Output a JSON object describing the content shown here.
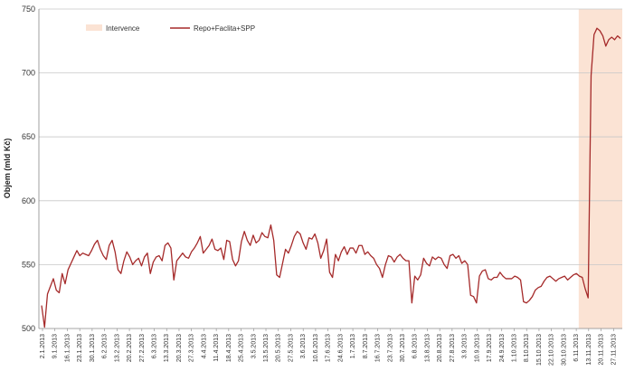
{
  "chart_data": {
    "type": "line",
    "title": "",
    "xlabel": "",
    "ylabel": "Objem (mld Kč)",
    "ylim": [
      500,
      750
    ],
    "yticks": [
      500,
      550,
      600,
      650,
      700,
      750
    ],
    "grid": "horizontal",
    "legend_position": "top-left",
    "colors": {
      "line": "#a52a2a",
      "intervention": "#fbe3d4",
      "grid": "#c8c8c8"
    },
    "intervention": {
      "name": "Intervence",
      "start": "7.11.2013",
      "end": "2.12.2013"
    },
    "x_ticks": [
      "2.1.2013",
      "9.1.2013",
      "16.1.2013",
      "23.1.2013",
      "30.1.2013",
      "6.2.2013",
      "13.2.2013",
      "20.2.2013",
      "27.2.2013",
      "6.3.2013",
      "13.3.2013",
      "20.3.2013",
      "27.3.2013",
      "4.4.2013",
      "11.4.2013",
      "18.4.2013",
      "25.4.2013",
      "3.5.2013",
      "13.5.2013",
      "20.5.2013",
      "27.5.2013",
      "3.6.2013",
      "10.6.2013",
      "17.6.2013",
      "24.6.2013",
      "1.7.2013",
      "8.7.2013",
      "16.7.2013",
      "23.7.2013",
      "30.7.2013",
      "6.8.2013",
      "13.8.2013",
      "20.8.2013",
      "27.8.2013",
      "3.9.2013",
      "10.9.2013",
      "17.9.2013",
      "24.9.2013",
      "1.10.2013",
      "8.10.2013",
      "15.10.2013",
      "22.10.2013",
      "30.10.2013",
      "6.11.2013",
      "13.11.2013",
      "20.11.2013",
      "27.11.2013"
    ],
    "series": [
      {
        "name": "Repo+Faclita+SPP",
        "values": [
          518,
          501,
          527,
          533,
          539,
          530,
          528,
          543,
          535,
          546,
          551,
          556,
          561,
          557,
          559,
          558,
          557,
          561,
          566,
          569,
          562,
          557,
          554,
          565,
          569,
          560,
          546,
          543,
          553,
          560,
          556,
          550,
          553,
          555,
          549,
          556,
          559,
          543,
          552,
          556,
          557,
          553,
          565,
          567,
          563,
          538,
          553,
          556,
          559,
          556,
          555,
          560,
          563,
          567,
          572,
          559,
          562,
          565,
          570,
          562,
          561,
          563,
          554,
          569,
          568,
          554,
          549,
          553,
          568,
          576,
          569,
          565,
          573,
          567,
          569,
          575,
          572,
          571,
          581,
          569,
          542,
          540,
          551,
          562,
          559,
          565,
          572,
          576,
          574,
          567,
          562,
          571,
          570,
          574,
          567,
          555,
          561,
          570,
          544,
          540,
          558,
          553,
          560,
          564,
          558,
          563,
          563,
          559,
          565,
          565,
          558,
          560,
          557,
          555,
          550,
          547,
          540,
          550,
          557,
          556,
          552,
          556,
          558,
          555,
          553,
          553,
          520,
          541,
          538,
          542,
          555,
          551,
          549,
          556,
          554,
          556,
          555,
          550,
          547,
          557,
          558,
          555,
          557,
          551,
          553,
          550,
          526,
          525,
          520,
          541,
          545,
          546,
          539,
          538,
          540,
          540,
          544,
          541,
          539,
          539,
          539,
          541,
          540,
          538,
          521,
          520,
          522,
          525,
          530,
          532,
          533,
          537,
          540,
          541,
          539,
          537,
          539,
          540,
          541,
          538,
          540,
          542,
          543,
          541,
          540,
          531,
          524,
          698,
          730,
          735,
          733,
          729,
          721,
          726,
          728,
          726,
          729,
          727
        ]
      }
    ]
  }
}
